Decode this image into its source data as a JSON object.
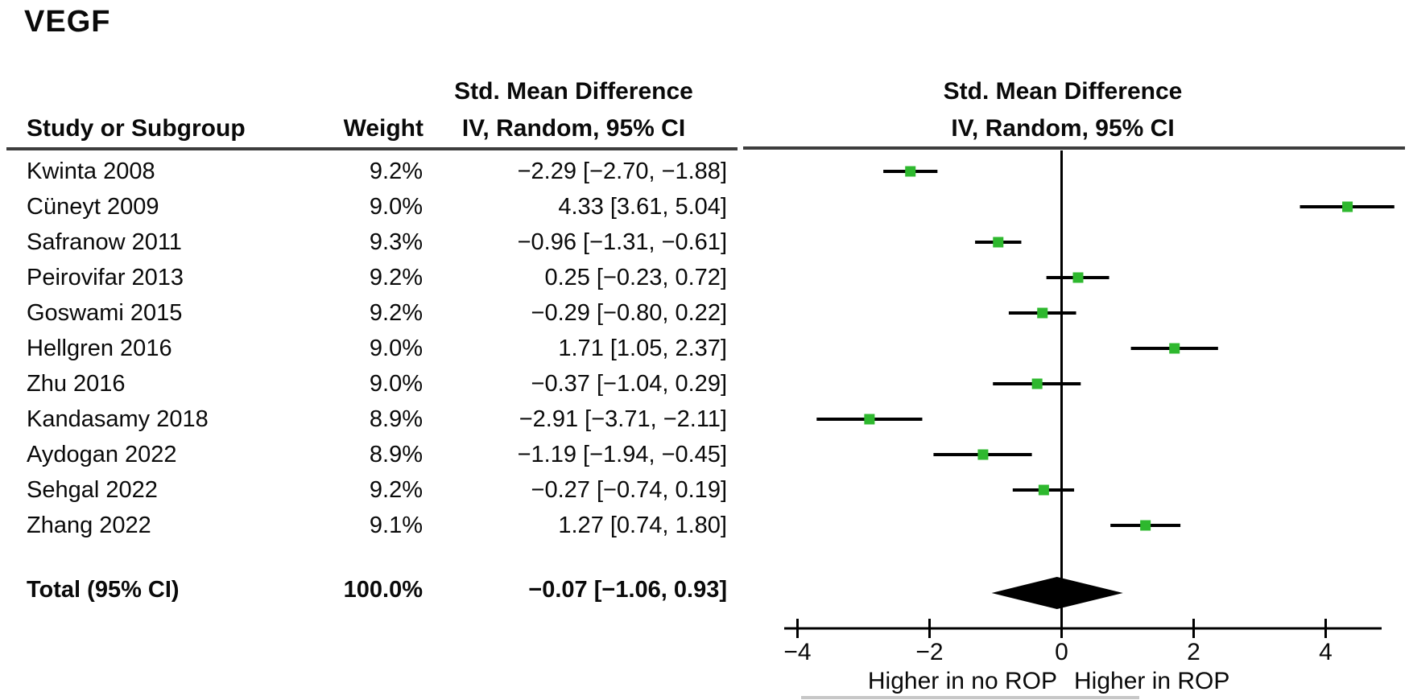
{
  "title": "VEGF",
  "table": {
    "col1_header": "Study or Subgroup",
    "col2_header": "Weight",
    "col3_header_line1": "Std. Mean Difference",
    "col3_header_line2": "IV, Random, 95% CI"
  },
  "plot": {
    "header_line1": "Std. Mean Difference",
    "header_line2": "IV, Random, 95% CI",
    "marker_color": "#2eb82e",
    "line_color": "#000000",
    "diamond_color": "#000000",
    "rule_color": "#3d3d3d"
  },
  "chart_data": {
    "type": "scatter",
    "subtype": "forest-plot",
    "title": "VEGF",
    "effect_measure": "Std. Mean Difference",
    "model": "IV, Random, 95% CI",
    "x_ticks": [
      -4,
      -2,
      0,
      2,
      4
    ],
    "xlim": [
      -4.2,
      4.85
    ],
    "grid": false,
    "xlabel_left": "Higher in no ROP",
    "xlabel_right": "Higher in ROP",
    "studies": [
      {
        "name": "Kwinta 2008",
        "weight": "9.2%",
        "mean": -2.29,
        "ci_low": -2.7,
        "ci_high": -1.88,
        "ci_text": "−2.29 [−2.70, −1.88]"
      },
      {
        "name": "Cüneyt 2009",
        "weight": "9.0%",
        "mean": 4.33,
        "ci_low": 3.61,
        "ci_high": 5.04,
        "ci_text": "4.33 [3.61, 5.04]"
      },
      {
        "name": "Safranow 2011",
        "weight": "9.3%",
        "mean": -0.96,
        "ci_low": -1.31,
        "ci_high": -0.61,
        "ci_text": "−0.96 [−1.31, −0.61]"
      },
      {
        "name": "Peirovifar 2013",
        "weight": "9.2%",
        "mean": 0.25,
        "ci_low": -0.23,
        "ci_high": 0.72,
        "ci_text": "0.25 [−0.23, 0.72]"
      },
      {
        "name": "Goswami 2015",
        "weight": "9.2%",
        "mean": -0.29,
        "ci_low": -0.8,
        "ci_high": 0.22,
        "ci_text": "−0.29 [−0.80, 0.22]"
      },
      {
        "name": "Hellgren 2016",
        "weight": "9.0%",
        "mean": 1.71,
        "ci_low": 1.05,
        "ci_high": 2.37,
        "ci_text": "1.71 [1.05, 2.37]"
      },
      {
        "name": "Zhu 2016",
        "weight": "9.0%",
        "mean": -0.37,
        "ci_low": -1.04,
        "ci_high": 0.29,
        "ci_text": "−0.37 [−1.04, 0.29]"
      },
      {
        "name": "Kandasamy 2018",
        "weight": "8.9%",
        "mean": -2.91,
        "ci_low": -3.71,
        "ci_high": -2.11,
        "ci_text": "−2.91 [−3.71, −2.11]"
      },
      {
        "name": "Aydogan 2022",
        "weight": "8.9%",
        "mean": -1.19,
        "ci_low": -1.94,
        "ci_high": -0.45,
        "ci_text": "−1.19 [−1.94, −0.45]"
      },
      {
        "name": "Sehgal 2022",
        "weight": "9.2%",
        "mean": -0.27,
        "ci_low": -0.74,
        "ci_high": 0.19,
        "ci_text": "−0.27 [−0.74, 0.19]"
      },
      {
        "name": "Zhang 2022",
        "weight": "9.1%",
        "mean": 1.27,
        "ci_low": 0.74,
        "ci_high": 1.8,
        "ci_text": "1.27 [0.74, 1.80]"
      }
    ],
    "total": {
      "label": "Total (95% CI)",
      "weight": "100.0%",
      "mean": -0.07,
      "ci_low": -1.06,
      "ci_high": 0.93,
      "ci_text": "−0.07 [−1.06, 0.93]"
    }
  }
}
